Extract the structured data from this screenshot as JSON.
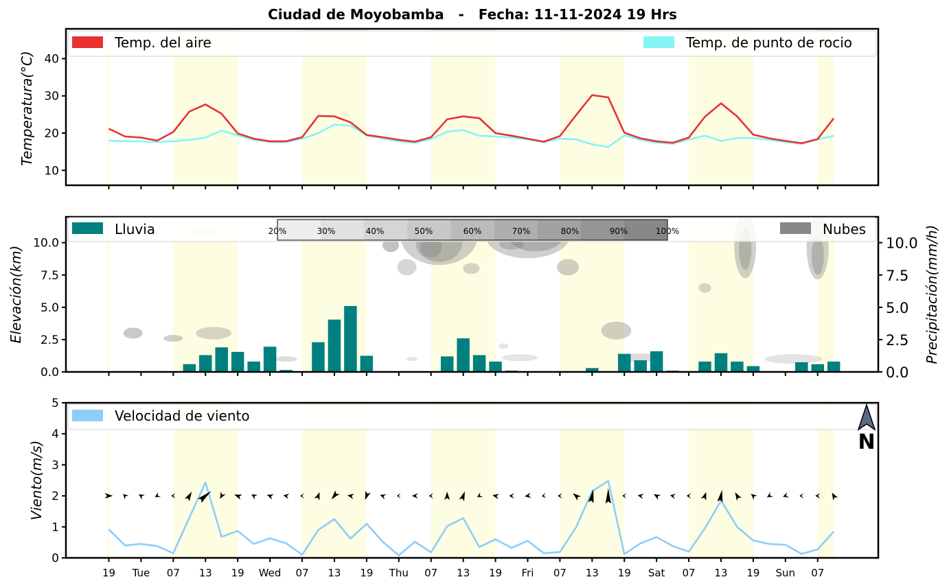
{
  "title": "Ciudad de Moyobamba   -   Fecha: 11-11-2024 19 Hrs",
  "x_labels": [
    "19",
    "Tue",
    "07",
    "13",
    "19",
    "Wed",
    "07",
    "13",
    "19",
    "Thu",
    "07",
    "13",
    "19",
    "Fri",
    "07",
    "13",
    "19",
    "Sat",
    "07",
    "13",
    "19",
    "Sun",
    "07"
  ],
  "chart_data": [
    {
      "type": "line",
      "ylabel": "Temperatura(°C)",
      "ylim": [
        6,
        48
      ],
      "yticks": [
        "10",
        "20",
        "30",
        "40"
      ],
      "legend": "top",
      "series": [
        {
          "name": "Temp. del aire",
          "color": "#e83232",
          "values": [
            21.2,
            19.1,
            18.8,
            18.0,
            20.3,
            25.8,
            27.7,
            25.2,
            19.9,
            18.5,
            17.8,
            17.8,
            18.9,
            24.6,
            24.5,
            22.9,
            19.5,
            18.9,
            18.2,
            17.7,
            18.9,
            23.7,
            24.5,
            24.0,
            20.0,
            19.3,
            18.5,
            17.7,
            19.2,
            24.8,
            30.2,
            29.6,
            20.1,
            18.6,
            17.8,
            17.4,
            18.8,
            24.4,
            28.0,
            24.5,
            19.6,
            18.6,
            17.9,
            17.3,
            18.4,
            24.0
          ]
        },
        {
          "name": "Temp. de punto de rocio",
          "color": "#85f5f5",
          "values": [
            18.0,
            17.8,
            17.8,
            17.6,
            17.8,
            18.2,
            18.8,
            20.7,
            19.4,
            18.2,
            17.6,
            17.6,
            18.5,
            20.0,
            22.3,
            22.0,
            19.4,
            18.5,
            17.8,
            17.4,
            18.4,
            20.4,
            20.8,
            19.3,
            19.1,
            18.8,
            18.3,
            17.6,
            18.5,
            18.3,
            17.0,
            16.3,
            19.4,
            18.2,
            17.4,
            17.1,
            18.3,
            19.3,
            17.9,
            18.7,
            18.7,
            18.2,
            17.6,
            17.1,
            18.3,
            19.3
          ]
        }
      ]
    },
    {
      "type": "bar",
      "ylabel_left": "Elevación(km)",
      "ylabel_right": "Precipitación(mm/h)",
      "ylim": [
        0,
        12
      ],
      "yticks": [
        "0.0",
        "2.5",
        "5.0",
        "7.5",
        "10.0"
      ],
      "legend_rain": "Lluvia",
      "legend_clouds": "Nubes",
      "rain_color": "#008080",
      "cloud_color": "#888888",
      "colorbar_labels": [
        "20%",
        "30%",
        "40%",
        "50%",
        "60%",
        "70%",
        "80%",
        "90%",
        "100%"
      ],
      "values": [
        0,
        0.05,
        0,
        0,
        0,
        0.6,
        1.3,
        1.9,
        1.55,
        0.8,
        1.95,
        0.15,
        0,
        2.3,
        4.05,
        5.1,
        1.25,
        0,
        0,
        0,
        0,
        1.2,
        2.6,
        1.3,
        0.8,
        0.1,
        0,
        0,
        0,
        0,
        0.3,
        0,
        1.4,
        0.9,
        1.6,
        0.1,
        0,
        0.8,
        1.45,
        0.8,
        0.45,
        0.05,
        0,
        0.75,
        0.6,
        0.8
      ]
    },
    {
      "type": "line",
      "ylabel": "Viento(m/s)",
      "ylim": [
        0,
        5
      ],
      "yticks": [
        "0",
        "1",
        "2",
        "3",
        "4",
        "5"
      ],
      "series": [
        {
          "name": "Velocidad de viento",
          "color": "#8ecdfa",
          "values": [
            0.92,
            0.4,
            0.45,
            0.38,
            0.15,
            1.3,
            2.43,
            0.68,
            0.87,
            0.45,
            0.63,
            0.47,
            0.1,
            0.9,
            1.25,
            0.62,
            1.1,
            0.52,
            0.08,
            0.52,
            0.18,
            1.02,
            1.28,
            0.35,
            0.6,
            0.32,
            0.55,
            0.15,
            0.19,
            0.98,
            2.15,
            2.48,
            0.12,
            0.47,
            0.67,
            0.38,
            0.2,
            0.95,
            1.85,
            1.0,
            0.56,
            0.45,
            0.42,
            0.13,
            0.27,
            0.85
          ]
        }
      ],
      "north_label": "N"
    }
  ]
}
